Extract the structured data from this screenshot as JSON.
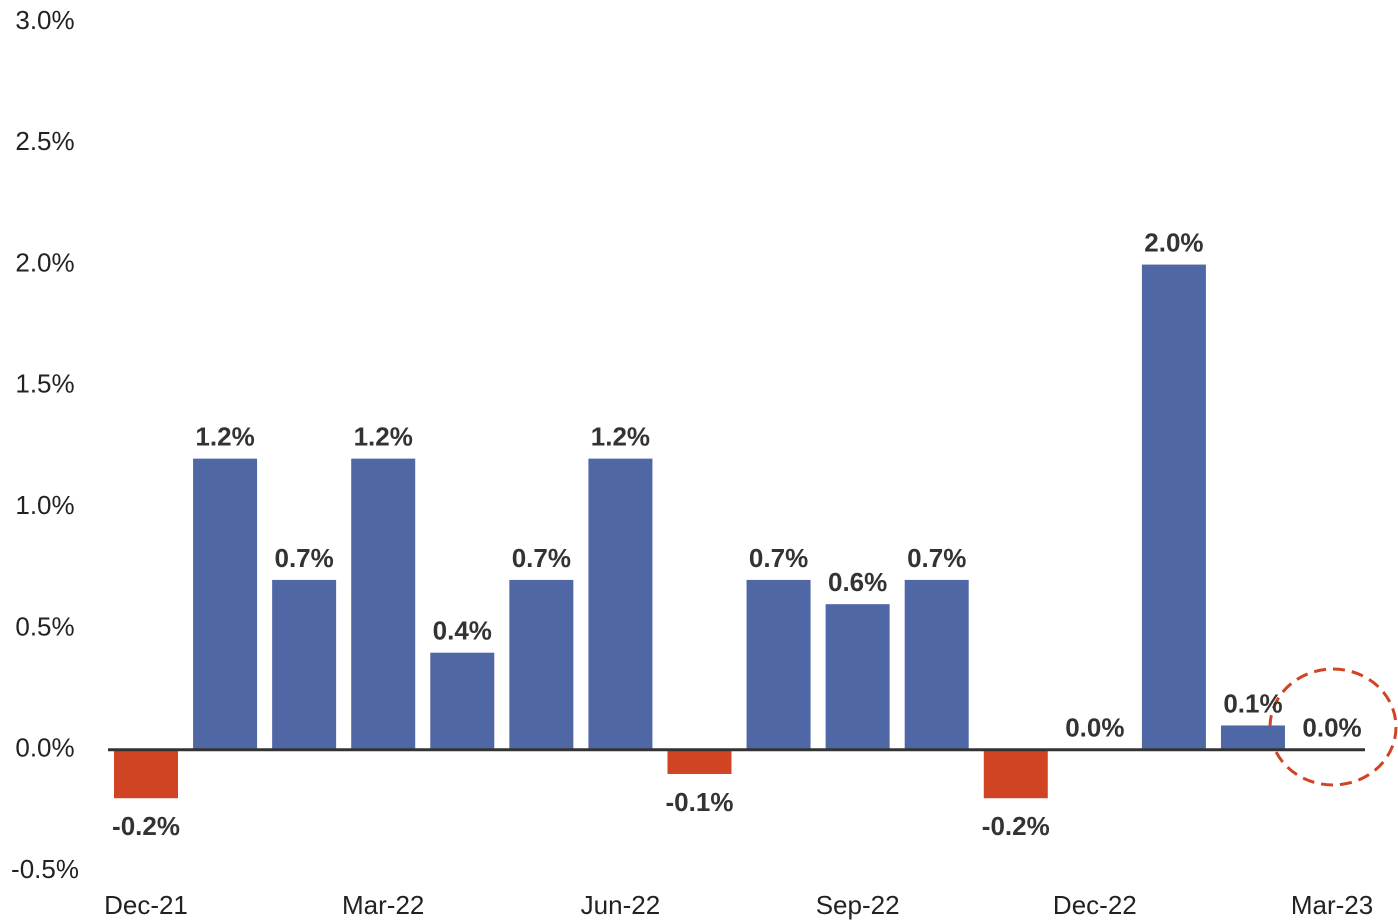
{
  "chart_data": {
    "type": "bar",
    "categories": [
      "Dec-21",
      null,
      null,
      "Mar-22",
      null,
      null,
      "Jun-22",
      null,
      null,
      "Sep-22",
      null,
      null,
      "Dec-22",
      null,
      null,
      "Mar-23"
    ],
    "values": [
      -0.2,
      1.2,
      0.7,
      1.2,
      0.4,
      0.7,
      1.2,
      -0.1,
      0.7,
      0.6,
      0.7,
      -0.2,
      0.0,
      2.0,
      0.1,
      0.0
    ],
    "value_labels": [
      "-0.2%",
      "1.2%",
      "0.7%",
      "1.2%",
      "0.4%",
      "0.7%",
      "1.2%",
      "-0.1%",
      "0.7%",
      "0.6%",
      "0.7%",
      "-0.2%",
      "0.0%",
      "2.0%",
      "0.1%",
      "0.0%"
    ],
    "color": "#4f67a5",
    "negative_color": "#d04423",
    "ylim": [
      -0.5,
      3.0
    ],
    "yticks": [
      {
        "value": -0.5,
        "label": "-0.5%"
      },
      {
        "value": 0.0,
        "label": "0.0%"
      },
      {
        "value": 0.5,
        "label": "0.5%"
      },
      {
        "value": 1.0,
        "label": "1.0%"
      },
      {
        "value": 1.5,
        "label": "1.5%"
      },
      {
        "value": 2.0,
        "label": "2.0%"
      },
      {
        "value": 2.5,
        "label": "2.5%"
      },
      {
        "value": 3.0,
        "label": "3.0%"
      }
    ],
    "grid": false
  }
}
